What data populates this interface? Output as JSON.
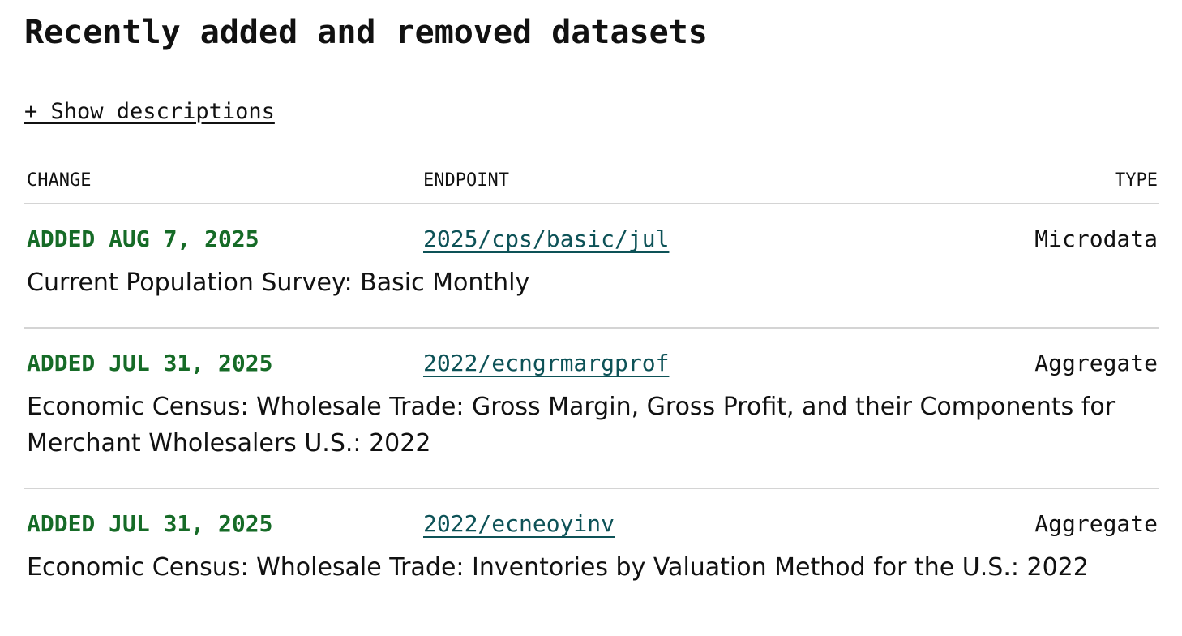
{
  "page": {
    "title": "Recently added and removed datasets",
    "toggle_label": "+ Show descriptions"
  },
  "table": {
    "headers": {
      "change": "CHANGE",
      "endpoint": "ENDPOINT",
      "type": "TYPE"
    },
    "rows": [
      {
        "change": "ADDED AUG 7, 2025",
        "endpoint": "2025/cps/basic/jul",
        "type": "Microdata",
        "description": "Current Population Survey: Basic Monthly"
      },
      {
        "change": "ADDED JUL 31, 2025",
        "endpoint": "2022/ecngrmargprof",
        "type": "Aggregate",
        "description": "Economic Census: Wholesale Trade: Gross Margin, Gross Profit, and their Components for Merchant Wholesalers U.S.: 2022"
      },
      {
        "change": "ADDED JUL 31, 2025",
        "endpoint": "2022/ecneoyinv",
        "type": "Aggregate",
        "description": "Economic Census: Wholesale Trade: Inventories by Valuation Method for the U.S.: 2022"
      }
    ]
  },
  "colors": {
    "added": "#166b27",
    "link": "#0d5257",
    "divider": "#d4d4d4"
  }
}
